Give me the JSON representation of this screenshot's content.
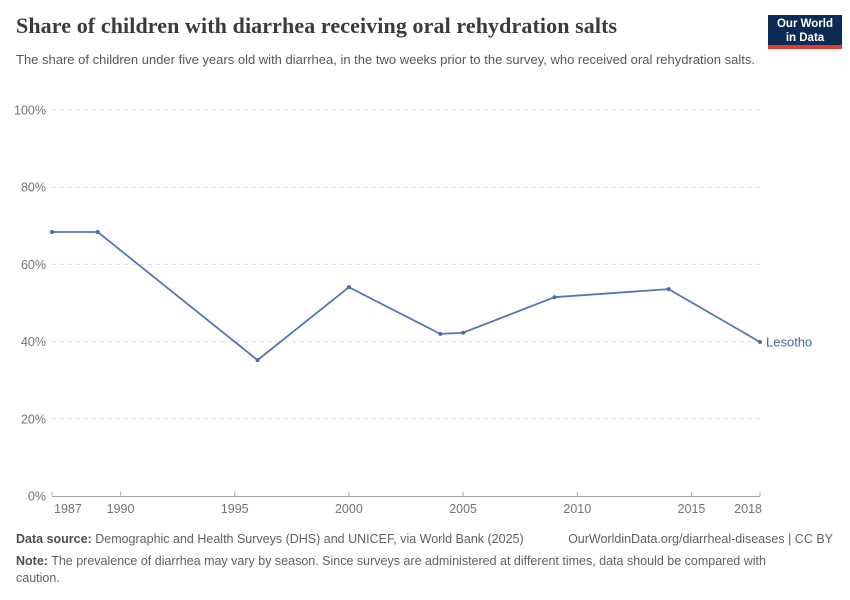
{
  "header": {
    "title": "Share of children with diarrhea receiving oral rehydration salts",
    "subtitle": "The share of children under five years old with diarrhea, in the two weeks prior to the survey, who received oral rehydration salts.",
    "logo": {
      "line1": "Our World",
      "line2": "in Data"
    }
  },
  "chart_data": {
    "type": "line",
    "title": "Share of children with diarrhea receiving oral rehydration salts",
    "xlabel": "",
    "ylabel": "",
    "xlim": [
      1987,
      2018
    ],
    "ylim": [
      0,
      100
    ],
    "x_ticks": [
      1987,
      1990,
      1995,
      2000,
      2005,
      2010,
      2015,
      2018
    ],
    "y_ticks": [
      0,
      20,
      40,
      60,
      80,
      100
    ],
    "y_tick_suffix": "%",
    "grid": "horizontal-dashed",
    "legend_position": "end-of-line-label",
    "series": [
      {
        "name": "Lesotho",
        "points": [
          {
            "year": 1987,
            "value": 68.4
          },
          {
            "year": 1989,
            "value": 68.4
          },
          {
            "year": 1996,
            "value": 35.2
          },
          {
            "year": 2000,
            "value": 54.1
          },
          {
            "year": 2004,
            "value": 42.0
          },
          {
            "year": 2005,
            "value": 42.3
          },
          {
            "year": 2009,
            "value": 51.5
          },
          {
            "year": 2014,
            "value": 53.6
          },
          {
            "year": 2018,
            "value": 39.9
          }
        ]
      }
    ]
  },
  "colors": {
    "line": "#5377b4",
    "point": "#4a6ba8",
    "series_label": "#3f65a4",
    "grid": "#dcdcdc",
    "axis": "#a0a0a0",
    "tick": "#ababab",
    "axis_label": "#737373",
    "logo_bg": "#0c2b54",
    "logo_accent": "#dc3e32",
    "background": "#ffffff"
  },
  "footer": {
    "datasource_label": "Data source:",
    "datasource_text": "Demographic and Health Surveys (DHS) and UNICEF, via World Bank (2025)",
    "link_text": "OurWorldinData.org/diarrheal-diseases | CC BY",
    "note_label": "Note:",
    "note_text": "The prevalence of diarrhea may vary by season. Since surveys are administered at different times, data should be compared with caution."
  }
}
